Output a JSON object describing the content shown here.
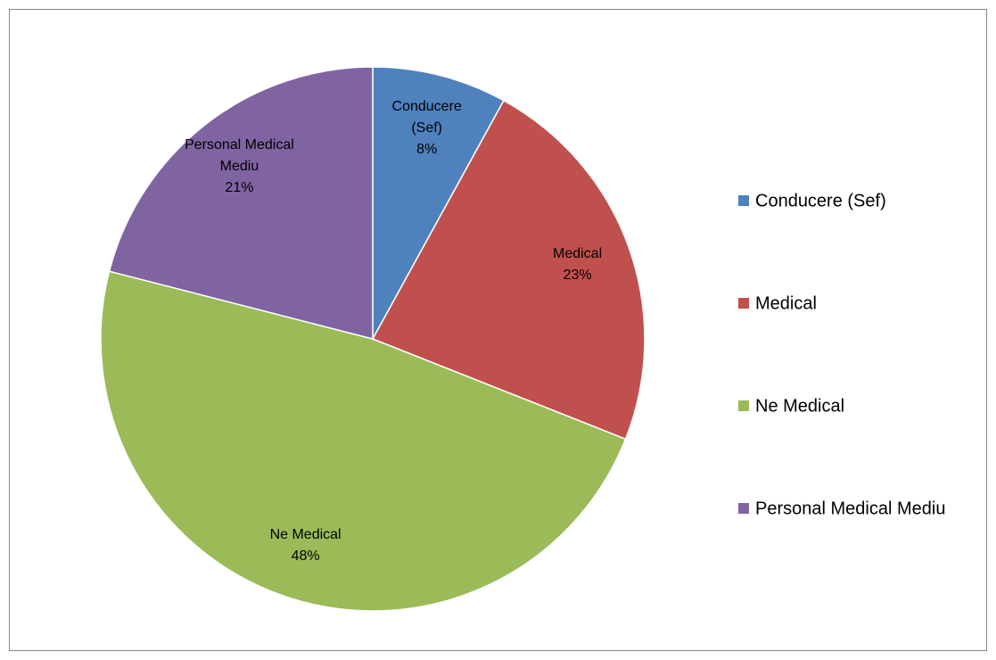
{
  "chart_data": {
    "type": "pie",
    "categories": [
      "Conducere (Sef)",
      "Medical",
      "Ne Medical",
      "Personal Medical Mediu"
    ],
    "values": [
      8,
      23,
      48,
      21
    ],
    "value_labels": [
      "8%",
      "23%",
      "48%",
      "21%"
    ],
    "colors": [
      "#4f81bd",
      "#c0504d",
      "#9bbb59",
      "#8064a2"
    ],
    "legend": "right"
  }
}
